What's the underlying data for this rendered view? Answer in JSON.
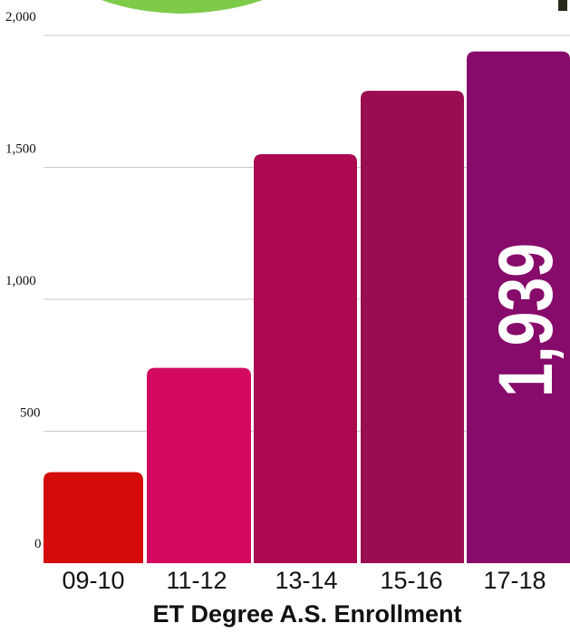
{
  "chart_data": {
    "type": "bar",
    "title": "ET Degree A.S. Enrollment",
    "categories": [
      "09-10",
      "11-12",
      "13-14",
      "15-16",
      "17-18"
    ],
    "values": [
      345,
      740,
      1550,
      1790,
      1939
    ],
    "ylim": [
      0,
      2000
    ],
    "yticks": [
      0,
      500,
      1000,
      1500,
      2000
    ],
    "ytick_labels": [
      "0",
      "500",
      "1,000",
      "1,500",
      "2,000"
    ],
    "grid": true,
    "legend": "none",
    "data_labels": [
      {
        "category": "17-18",
        "text": "1,939"
      }
    ],
    "colors": [
      "#d50a0a",
      "#d30a60",
      "#ad0952",
      "#9a0d52",
      "#870b6b"
    ]
  }
}
